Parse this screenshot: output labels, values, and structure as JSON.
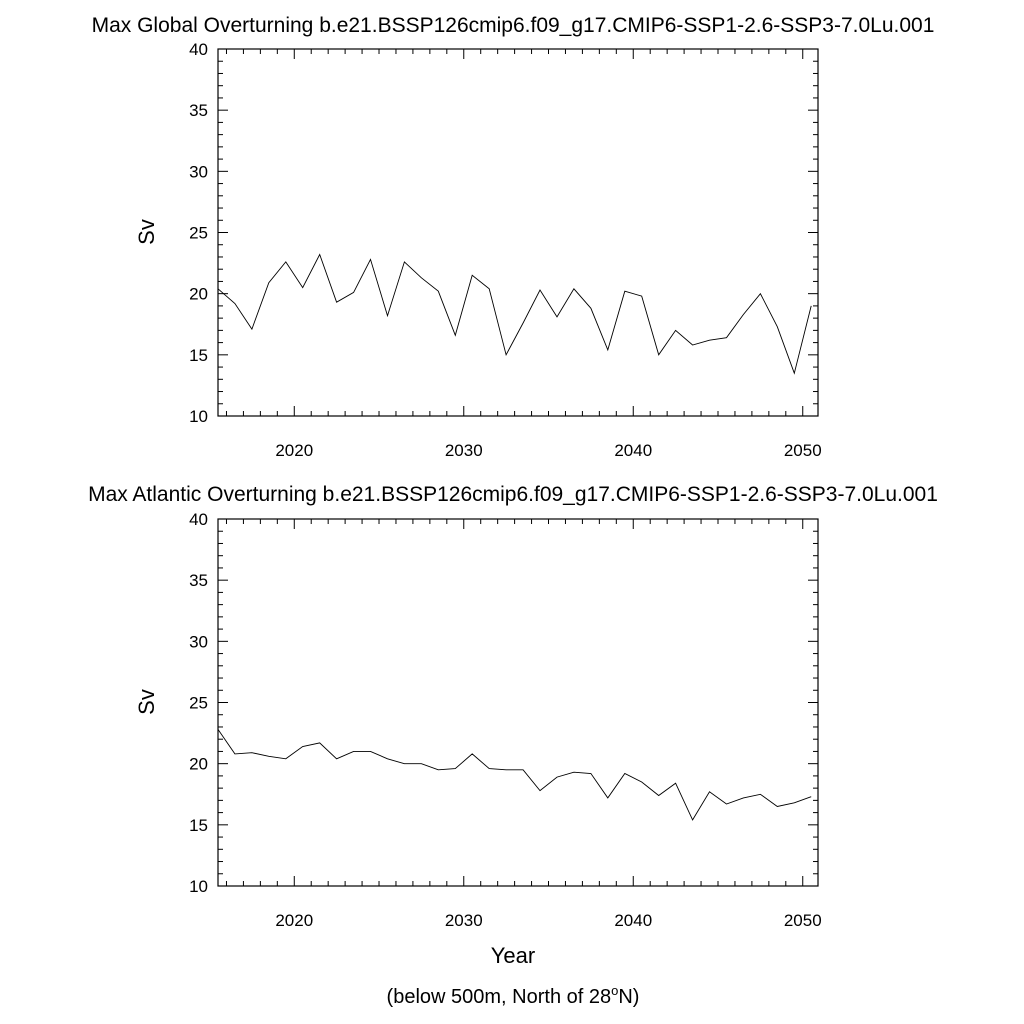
{
  "chart_data": [
    {
      "type": "line",
      "title": "Max Global Overturning b.e21.BSSP126cmip6.f09_g17.CMIP6-SSP1-2.6-SSP3-7.0Lu.001",
      "xlabel": "",
      "ylabel": "Sv",
      "xlim": [
        2015.5,
        2050.9
      ],
      "ylim": [
        10,
        40
      ],
      "xticks": [
        2020,
        2030,
        2040,
        2050
      ],
      "yticks": [
        10,
        15,
        20,
        25,
        30,
        35,
        40
      ],
      "grid": false,
      "series": [
        {
          "name": "Max Global Overturning",
          "x": [
            2015.5,
            2016.5,
            2017.5,
            2018.5,
            2019.5,
            2020.5,
            2021.5,
            2022.5,
            2023.5,
            2024.5,
            2025.5,
            2026.5,
            2027.5,
            2028.5,
            2029.5,
            2030.5,
            2031.5,
            2032.5,
            2033.5,
            2034.5,
            2035.5,
            2036.5,
            2037.5,
            2038.5,
            2039.5,
            2040.5,
            2041.5,
            2042.5,
            2043.5,
            2044.5,
            2045.5,
            2046.5,
            2047.5,
            2048.5,
            2049.5,
            2050.5
          ],
          "values": [
            20.4,
            19.2,
            17.1,
            20.9,
            22.6,
            20.5,
            23.2,
            19.3,
            20.1,
            22.8,
            18.2,
            22.6,
            21.3,
            20.2,
            16.6,
            21.5,
            20.4,
            15.0,
            17.6,
            20.3,
            18.1,
            20.4,
            18.8,
            15.4,
            20.2,
            19.8,
            15.0,
            17.0,
            15.8,
            16.2,
            16.4,
            18.3,
            20.0,
            17.3,
            13.5,
            19.0
          ]
        }
      ]
    },
    {
      "type": "line",
      "title": "Max Atlantic Overturning b.e21.BSSP126cmip6.f09_g17.CMIP6-SSP1-2.6-SSP3-7.0Lu.001",
      "xlabel": "Year",
      "ylabel": "Sv",
      "xlim": [
        2015.5,
        2050.9
      ],
      "ylim": [
        10,
        40
      ],
      "xticks": [
        2020,
        2030,
        2040,
        2050
      ],
      "yticks": [
        10,
        15,
        20,
        25,
        30,
        35,
        40
      ],
      "grid": false,
      "series": [
        {
          "name": "Max Atlantic Overturning",
          "x": [
            2015.5,
            2016.5,
            2017.5,
            2018.5,
            2019.5,
            2020.5,
            2021.5,
            2022.5,
            2023.5,
            2024.5,
            2025.5,
            2026.5,
            2027.5,
            2028.5,
            2029.5,
            2030.5,
            2031.5,
            2032.5,
            2033.5,
            2034.5,
            2035.5,
            2036.5,
            2037.5,
            2038.5,
            2039.5,
            2040.5,
            2041.5,
            2042.5,
            2043.5,
            2044.5,
            2045.5,
            2046.5,
            2047.5,
            2048.5,
            2049.5,
            2050.5
          ],
          "values": [
            22.8,
            20.8,
            20.9,
            20.6,
            20.4,
            21.4,
            21.7,
            20.4,
            21.0,
            21.0,
            20.4,
            20.0,
            20.0,
            19.5,
            19.6,
            20.8,
            19.6,
            19.5,
            19.5,
            17.8,
            18.9,
            19.3,
            19.2,
            17.2,
            19.2,
            18.5,
            17.4,
            18.4,
            15.4,
            17.7,
            16.7,
            17.2,
            17.5,
            16.5,
            16.8,
            17.3
          ]
        }
      ]
    }
  ],
  "footnote": {
    "prefix": "(below 500m, North of 28",
    "superscript": "o",
    "suffix": "N)"
  }
}
